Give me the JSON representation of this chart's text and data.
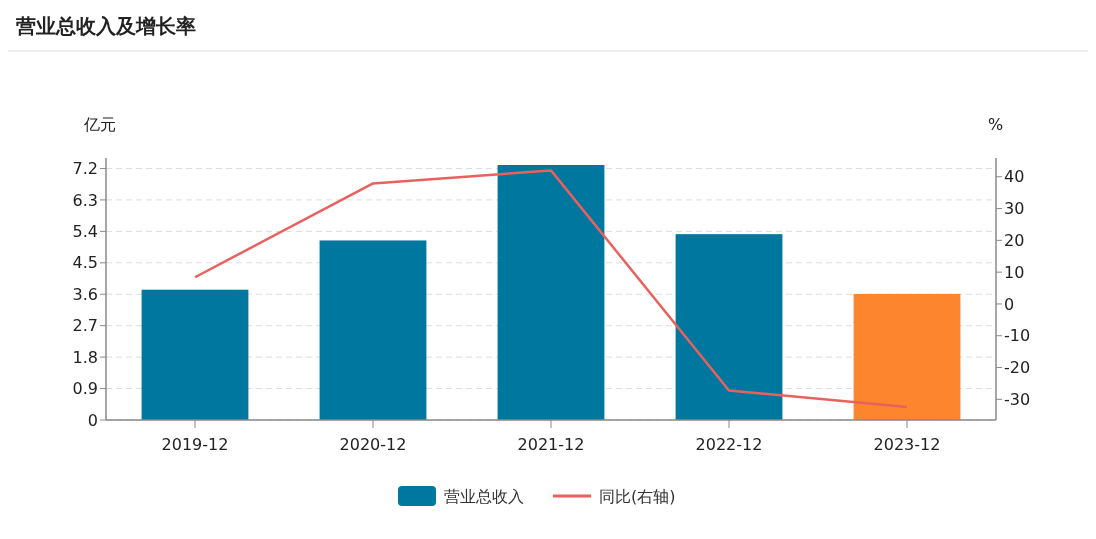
{
  "chart_data": {
    "type": "bar",
    "title": "营业总收入及增长率",
    "ylabel": "亿元",
    "y2label": "%",
    "categories": [
      "2019-12",
      "2020-12",
      "2021-12",
      "2022-12",
      "2023-12"
    ],
    "series": [
      {
        "name": "营业总收入",
        "color": "#00779f",
        "colors": [
          "#00779f",
          "#00779f",
          "#00779f",
          "#00779f",
          "#fd852d"
        ],
        "values": [
          3.73,
          5.14,
          7.3,
          5.32,
          3.61
        ]
      },
      {
        "name": "同比(右轴)",
        "type": "line",
        "axis": "y2",
        "color": "#e8615f",
        "values": [
          8.4,
          37.9,
          42.0,
          -27.2,
          -32.4
        ]
      }
    ],
    "ylim": [
      0,
      7.5
    ],
    "yticks": [
      0,
      0.9,
      1.8,
      2.7,
      3.6,
      4.5,
      5.4,
      6.3,
      7.2
    ],
    "y2lim": [
      -36.5,
      45.9
    ],
    "y2ticks": [
      -30,
      -20,
      -10,
      0,
      10,
      20,
      30,
      40
    ],
    "grid": "y",
    "legend": "bottom",
    "marker": "none",
    "line_style": "solid"
  }
}
